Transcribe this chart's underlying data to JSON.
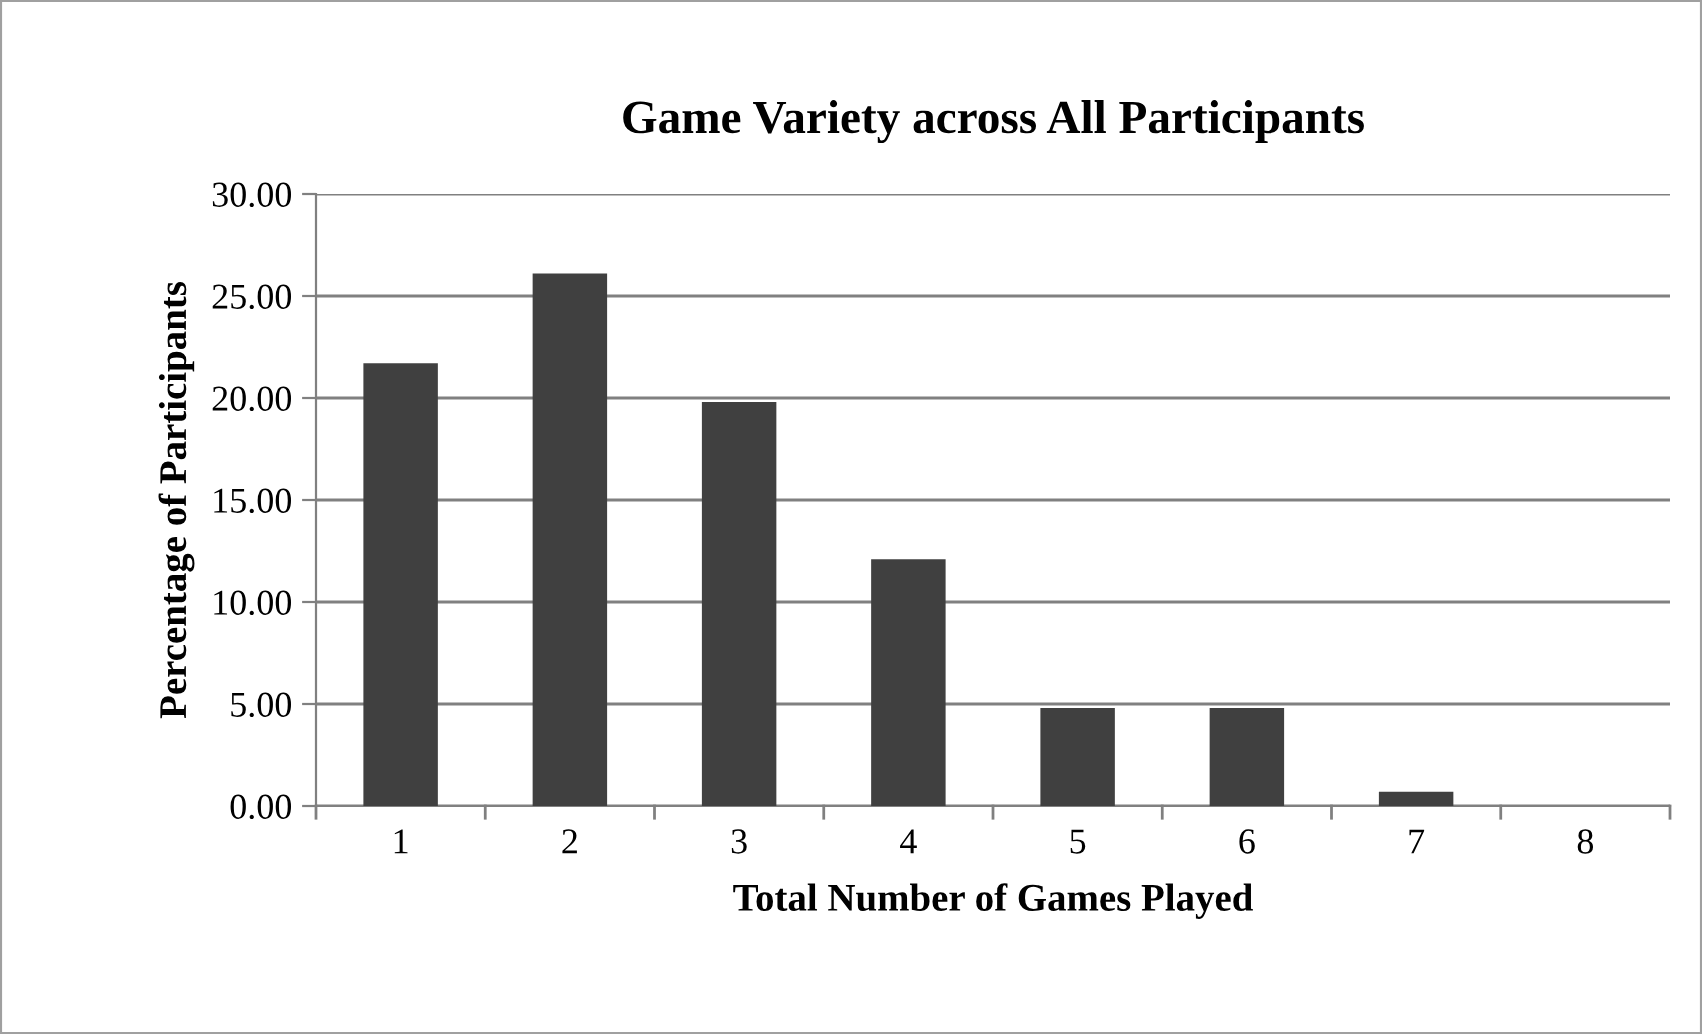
{
  "chart_data": {
    "type": "bar",
    "title": "Game Variety across All Participants",
    "xlabel": "Total Number of Games Played",
    "ylabel": "Percentage of Participants",
    "categories": [
      "1",
      "2",
      "3",
      "4",
      "5",
      "6",
      "7",
      "8"
    ],
    "values": [
      21.7,
      26.1,
      19.8,
      12.1,
      4.8,
      4.8,
      0.7,
      0
    ],
    "color": "#404040",
    "ylim": [
      0,
      30
    ],
    "yticks": [
      {
        "value": 0,
        "label": "0.00"
      },
      {
        "value": 5,
        "label": "5.00"
      },
      {
        "value": 10,
        "label": "10.00"
      },
      {
        "value": 15,
        "label": "15.00"
      },
      {
        "value": 20,
        "label": "20.00"
      },
      {
        "value": 25,
        "label": "25.00"
      },
      {
        "value": 30,
        "label": "30.00"
      }
    ],
    "grid": "y"
  }
}
